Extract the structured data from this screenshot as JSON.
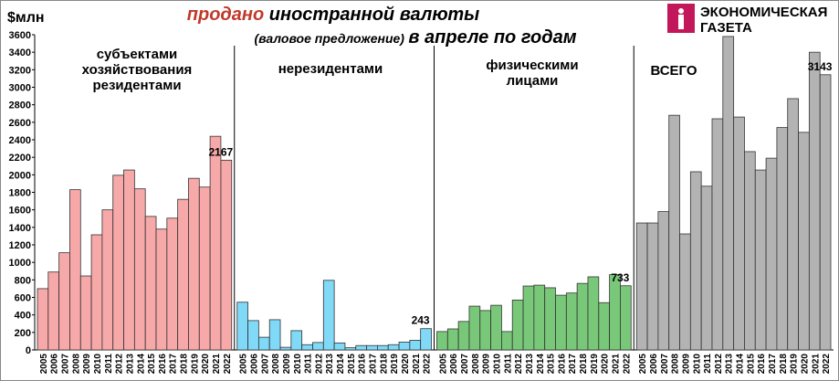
{
  "chart_data": {
    "type": "bar",
    "title_highlight": "продано",
    "title": "иностранной валюты",
    "subtitle_note": "(валовое предложение)",
    "subtitle": "в апреле по годам",
    "y_label": "$млн",
    "source": [
      "ЭКОНОМИЧЕСКАЯ",
      "ГАЗЕТА"
    ],
    "ylim": [
      0,
      3600
    ],
    "yticks": [
      0,
      200,
      400,
      600,
      800,
      1000,
      1200,
      1400,
      1600,
      1800,
      2000,
      2200,
      2400,
      2600,
      2800,
      3000,
      3200,
      3400,
      3600
    ],
    "panels": [
      {
        "label": [
          "субъектами",
          "хозяйствования",
          "резидентами"
        ],
        "color": "#f7a8a8",
        "categories": [
          "2005",
          "2006",
          "2007",
          "2008",
          "2009",
          "2010",
          "2011",
          "2012",
          "2013",
          "2014",
          "2015",
          "2016",
          "2017",
          "2018",
          "2019",
          "2020",
          "2021",
          "2022"
        ],
        "values": [
          700,
          890,
          1110,
          1830,
          845,
          1315,
          1600,
          1995,
          2055,
          1840,
          1525,
          1380,
          1505,
          1720,
          1960,
          1860,
          2440,
          2167
        ]
      },
      {
        "label": [
          "нерезидентами"
        ],
        "color": "#7fd9f7",
        "categories": [
          "2005",
          "2006",
          "2007",
          "2008",
          "2009",
          "2010",
          "2011",
          "2012",
          "2013",
          "2014",
          "2015",
          "2016",
          "2017",
          "2018",
          "2019",
          "2020",
          "2021",
          "2022"
        ],
        "values": [
          545,
          335,
          145,
          345,
          30,
          220,
          60,
          85,
          795,
          80,
          25,
          50,
          50,
          50,
          60,
          90,
          110,
          243
        ]
      },
      {
        "label": [
          "физическими",
          "лицами"
        ],
        "color": "#79c879",
        "categories": [
          "2005",
          "2006",
          "2007",
          "2008",
          "2009",
          "2010",
          "2011",
          "2012",
          "2013",
          "2014",
          "2015",
          "2016",
          "2017",
          "2018",
          "2019",
          "2020",
          "2021",
          "2022"
        ],
        "values": [
          210,
          240,
          325,
          500,
          450,
          510,
          210,
          570,
          730,
          740,
          710,
          625,
          650,
          760,
          835,
          540,
          860,
          733
        ]
      },
      {
        "label": [
          "ВСЕГО"
        ],
        "color": "#b3b3b3",
        "categories": [
          "2005",
          "2006",
          "2007",
          "2008",
          "2009",
          "2010",
          "2011",
          "2012",
          "2013",
          "2014",
          "2015",
          "2016",
          "2017",
          "2018",
          "2019",
          "2020",
          "2021",
          "2022"
        ],
        "values": [
          1450,
          1450,
          1580,
          2680,
          1325,
          2035,
          1870,
          2640,
          3580,
          2660,
          2265,
          2055,
          2190,
          2540,
          2870,
          2485,
          3400,
          3143
        ]
      }
    ]
  }
}
